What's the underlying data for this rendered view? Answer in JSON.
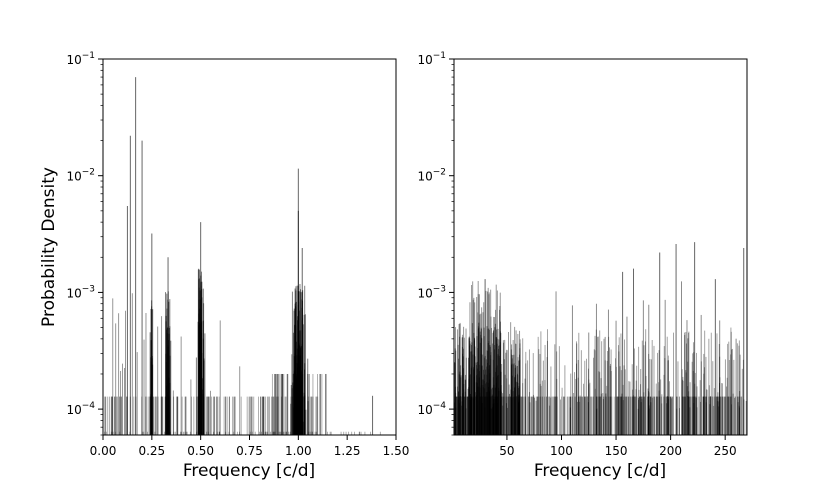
{
  "chart_data": [
    {
      "type": "histogram",
      "panel": "left",
      "xlabel": "Frequency [c/d]",
      "ylabel": "Probability Density",
      "yscale": "log",
      "xlim": [
        0.0,
        1.5
      ],
      "ylim": [
        6e-05,
        0.1
      ],
      "xticks": [
        0.0,
        0.25,
        0.5,
        0.75,
        1.0,
        1.25,
        1.5
      ],
      "xtick_labels": [
        "0.00",
        "0.25",
        "0.50",
        "0.75",
        "1.00",
        "1.25",
        "1.50"
      ],
      "yticks": [
        0.0001,
        0.001,
        0.01,
        0.1
      ],
      "ytick_labels": [
        {
          "base": "10",
          "exp": "−4"
        },
        {
          "base": "10",
          "exp": "−3"
        },
        {
          "base": "10",
          "exp": "−2"
        },
        {
          "base": "10",
          "exp": "−1"
        }
      ],
      "peaks": [
        {
          "x": 0.167,
          "y": 0.07
        },
        {
          "x": 0.14,
          "y": 0.022
        },
        {
          "x": 0.2,
          "y": 0.02
        },
        {
          "x": 0.125,
          "y": 0.0055
        },
        {
          "x": 0.25,
          "y": 0.0032
        },
        {
          "x": 0.333,
          "y": 0.002
        },
        {
          "x": 0.5,
          "y": 0.004
        },
        {
          "x": 1.0,
          "y": 0.0115
        },
        {
          "x": 1.0,
          "y": 0.005
        },
        {
          "x": 1.02,
          "y": 0.0024
        },
        {
          "x": 1.38,
          "y": 0.00013
        }
      ],
      "grid": false
    },
    {
      "type": "histogram",
      "panel": "right",
      "xlabel": "Frequency [c/d]",
      "ylabel": "",
      "yscale": "log",
      "xlim": [
        1.5,
        270
      ],
      "ylim": [
        6e-05,
        0.1
      ],
      "xticks": [
        50,
        100,
        150,
        200,
        250
      ],
      "xtick_labels": [
        "50",
        "100",
        "150",
        "200",
        "250"
      ],
      "yticks": [
        0.0001,
        0.001,
        0.01,
        0.1
      ],
      "ytick_labels": [
        {
          "base": "10",
          "exp": "−4"
        },
        {
          "base": "10",
          "exp": "−3"
        },
        {
          "base": "10",
          "exp": "−2"
        },
        {
          "base": "10",
          "exp": "−1"
        }
      ],
      "peaks": [
        {
          "x": 30,
          "y": 0.0013
        },
        {
          "x": 156,
          "y": 0.0015
        },
        {
          "x": 166,
          "y": 0.0016
        },
        {
          "x": 190,
          "y": 0.0022
        },
        {
          "x": 205,
          "y": 0.0026
        },
        {
          "x": 222,
          "y": 0.0027
        },
        {
          "x": 241,
          "y": 0.0013
        },
        {
          "x": 267,
          "y": 0.0024
        }
      ],
      "grid": false
    }
  ]
}
